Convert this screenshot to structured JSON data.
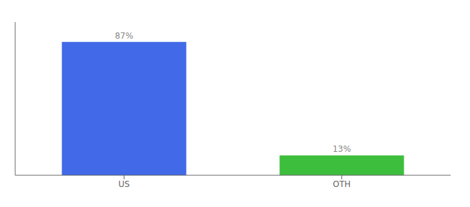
{
  "chart_data": {
    "type": "bar",
    "categories": [
      "US",
      "OTH"
    ],
    "values": [
      87,
      13
    ],
    "value_labels": [
      "87%",
      "13%"
    ],
    "data_labels": true,
    "colors": [
      "#4169e8",
      "#3dbe3d"
    ],
    "ylim": [
      0,
      100
    ],
    "tick_labels": "x",
    "grid": false
  }
}
